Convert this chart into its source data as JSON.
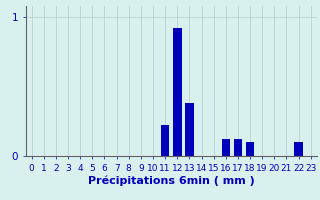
{
  "xlabel": "Précipitations 6min ( mm )",
  "values": [
    0,
    0,
    0,
    0,
    0,
    0,
    0,
    0,
    0,
    0,
    0,
    0.22,
    0.92,
    0.38,
    0,
    0,
    0.12,
    0.12,
    0.1,
    0,
    0,
    0,
    0.1,
    0
  ],
  "bar_color": "#0000bb",
  "bg_color": "#d8f0ee",
  "grid_color": "#b8d4d0",
  "text_color": "#0000bb",
  "ylim": [
    0,
    1.08
  ],
  "yticks": [
    0,
    1
  ],
  "ytick_labels": [
    "0",
    "1"
  ],
  "xlim": [
    -0.5,
    23.5
  ],
  "xlabel_fontsize": 8,
  "tick_fontsize": 6.5,
  "bar_width": 0.7,
  "figwidth": 3.2,
  "figheight": 2.0,
  "dpi": 100
}
